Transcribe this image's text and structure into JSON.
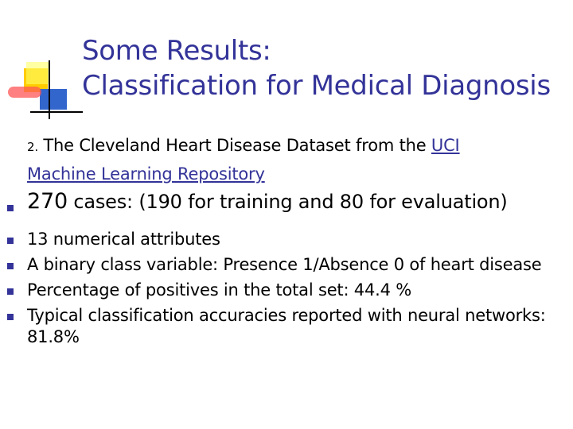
{
  "slide": {
    "title_line1": "Some Results:",
    "title_line2": "Classification for Medical Diagnosis",
    "intro_number": "2.",
    "intro_text": "The Cleveland Heart Disease Dataset from the",
    "intro_link_part1": "UCI",
    "intro_link_part2": "Machine Learning Repository",
    "bullets": [
      {
        "lead": "270",
        "text": "cases: (190 for training and 80 for evaluation)"
      },
      {
        "text": "13 numerical attributes"
      },
      {
        "text": "A binary class variable: Presence 1/Absence 0 of heart disease"
      },
      {
        "text": "Percentage of positives in the total set: 44.4 %"
      },
      {
        "text": "Typical classification accuracies reported with neural networks: 81.8%"
      }
    ]
  },
  "colors": {
    "title": "#333399",
    "bullet": "#333399",
    "text": "#000000"
  }
}
